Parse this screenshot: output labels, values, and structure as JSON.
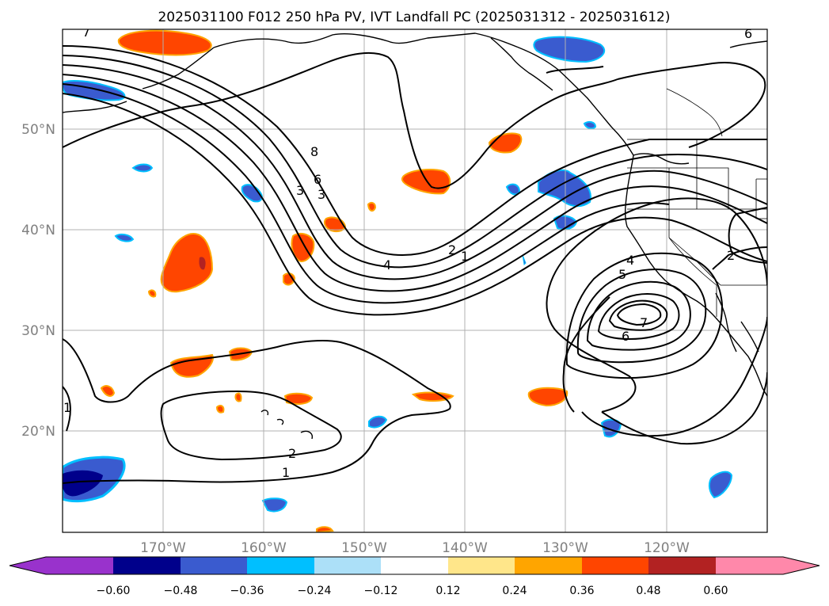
{
  "title": "2025031100 F012 250 hPa PV, IVT Landfall PC (2025031312 - 2025031612)",
  "map": {
    "lat_labels": [
      "50°N",
      "40°N",
      "30°N",
      "20°N"
    ],
    "lon_labels": [
      "170°W",
      "160°W",
      "150°W",
      "140°W",
      "130°W",
      "120°W"
    ],
    "gridlines": true
  },
  "contour_labels": [
    {
      "id": "c7a",
      "text": "7"
    },
    {
      "id": "c8",
      "text": "8"
    },
    {
      "id": "c6a",
      "text": "6"
    },
    {
      "id": "c3a",
      "text": "3"
    },
    {
      "id": "c3b",
      "text": "3"
    },
    {
      "id": "c4a",
      "text": "4"
    },
    {
      "id": "c2a",
      "text": "2"
    },
    {
      "id": "c1a",
      "text": "1"
    },
    {
      "id": "c4b",
      "text": "4"
    },
    {
      "id": "c5",
      "text": "5"
    },
    {
      "id": "c7b",
      "text": "7"
    },
    {
      "id": "c6b",
      "text": "6"
    },
    {
      "id": "c2b",
      "text": "2"
    },
    {
      "id": "c2c",
      "text": "2"
    },
    {
      "id": "c1b",
      "text": "1"
    },
    {
      "id": "c1c",
      "text": "1"
    },
    {
      "id": "c6c",
      "text": "6"
    }
  ],
  "colorbar": {
    "tick_labels": [
      "−0.60",
      "−0.48",
      "−0.36",
      "−0.24",
      "−0.12",
      "0.12",
      "0.24",
      "0.36",
      "0.48",
      "0.60"
    ],
    "colors": [
      "#9932cc",
      "#00008b",
      "#3a5bcf",
      "#00bfff",
      "#ace0f8",
      "#ffffff",
      "#ffe68a",
      "#ffa500",
      "#ff4500",
      "#b22222",
      "#ff88aa"
    ]
  }
}
